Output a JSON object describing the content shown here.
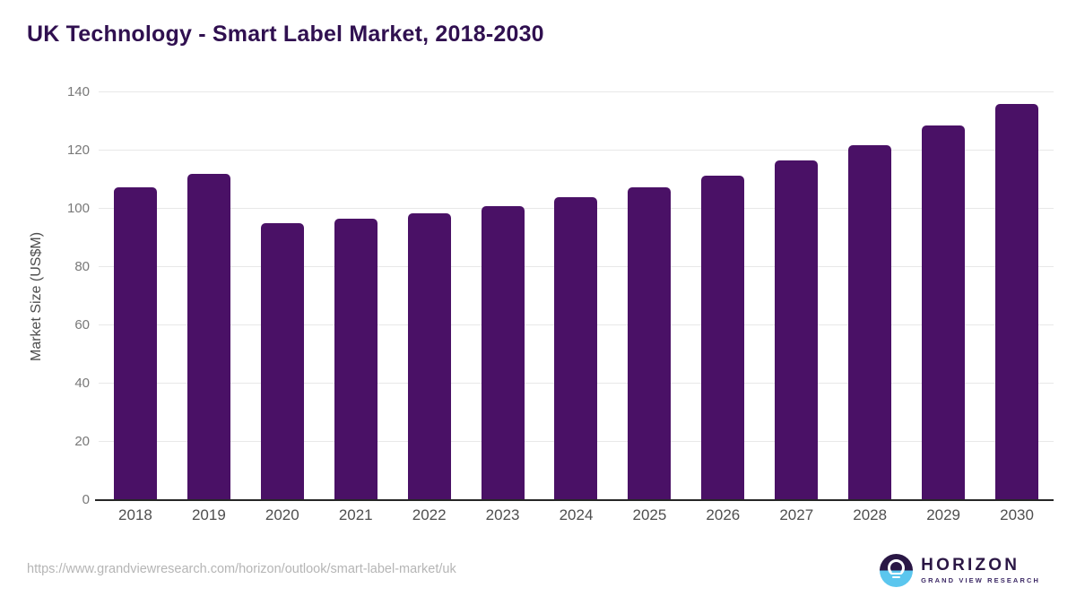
{
  "header": {
    "title": "UK Technology - Smart Label Market, 2018-2030"
  },
  "chart_data": {
    "type": "bar",
    "title": "UK Technology - Smart Label Market, 2018-2030",
    "categories": [
      "2018",
      "2019",
      "2020",
      "2021",
      "2022",
      "2023",
      "2024",
      "2025",
      "2026",
      "2027",
      "2028",
      "2029",
      "2030"
    ],
    "values": [
      107.5,
      112,
      95,
      96.5,
      98.5,
      101,
      104,
      107.5,
      111.5,
      116.5,
      122,
      128.5,
      136
    ],
    "xlabel": "",
    "ylabel": "Market Size (US$M)",
    "ylim": [
      0,
      140
    ],
    "ytick_interval": 20,
    "yticks": [
      0,
      20,
      40,
      60,
      80,
      100,
      120,
      140
    ],
    "grid": "horizontal",
    "legend": "none",
    "bar_color": "#4a1166"
  },
  "footer": {
    "source_url": "https://www.grandviewresearch.com/horizon/outlook/smart-label-market/uk",
    "logo": {
      "name": "HORIZON",
      "subtitle": "GRAND VIEW RESEARCH"
    }
  },
  "colors": {
    "title_text": "#301050",
    "bar": "#4a1166",
    "axis_line": "#262626",
    "gridline": "#e8e8e8",
    "y_tick_text": "#787878",
    "x_tick_text": "#4f4f4f",
    "url_text": "#b5b5b5",
    "logo_dark": "#2a1745",
    "logo_blue": "#5bc6ee"
  }
}
